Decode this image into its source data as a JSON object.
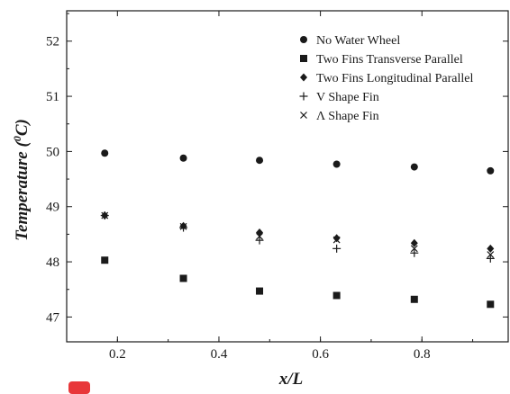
{
  "chart_data": {
    "type": "scatter",
    "title": "",
    "xlabel": "x/L",
    "ylabel": "Temperature (0C)",
    "xlim": [
      0.1,
      0.97
    ],
    "ylim": [
      46.55,
      52.55
    ],
    "x_ticks": [
      0.2,
      0.4,
      0.6,
      0.8
    ],
    "x_tick_labels": [
      "0.2",
      "0.4",
      "0.6",
      "0.8"
    ],
    "y_ticks": [
      47,
      48,
      49,
      50,
      51,
      52
    ],
    "y_tick_labels": [
      "47",
      "48",
      "49",
      "50",
      "51",
      "52"
    ],
    "grid": false,
    "legend_position": "top-right",
    "x": [
      0.175,
      0.33,
      0.48,
      0.632,
      0.785,
      0.935
    ],
    "series": [
      {
        "name": "No Water Wheel",
        "marker": "circle",
        "values": [
          49.97,
          49.88,
          49.84,
          49.77,
          49.72,
          49.65
        ]
      },
      {
        "name": "Two Fins Transverse Parallel",
        "marker": "square",
        "values": [
          48.03,
          47.7,
          47.47,
          47.39,
          47.32,
          47.23
        ]
      },
      {
        "name": "Two Fins Longitudinal Parallel",
        "marker": "diamond",
        "values": [
          48.84,
          48.65,
          48.53,
          48.43,
          48.34,
          48.24
        ]
      },
      {
        "name": "V Shape Fin",
        "marker": "plus",
        "values": [
          48.84,
          48.62,
          48.39,
          48.24,
          48.16,
          48.06
        ]
      },
      {
        "name": "Λ Shape Fin",
        "marker": "cross",
        "values": [
          48.84,
          48.64,
          48.46,
          48.4,
          48.24,
          48.13
        ]
      }
    ]
  },
  "ylabel_parts": {
    "main": "Temperature (",
    "sup": "0",
    "unit": "C)"
  },
  "colors": {
    "marker": "#1a1a1a",
    "axis": "#1a1a1a",
    "accent": "#e8373a"
  }
}
